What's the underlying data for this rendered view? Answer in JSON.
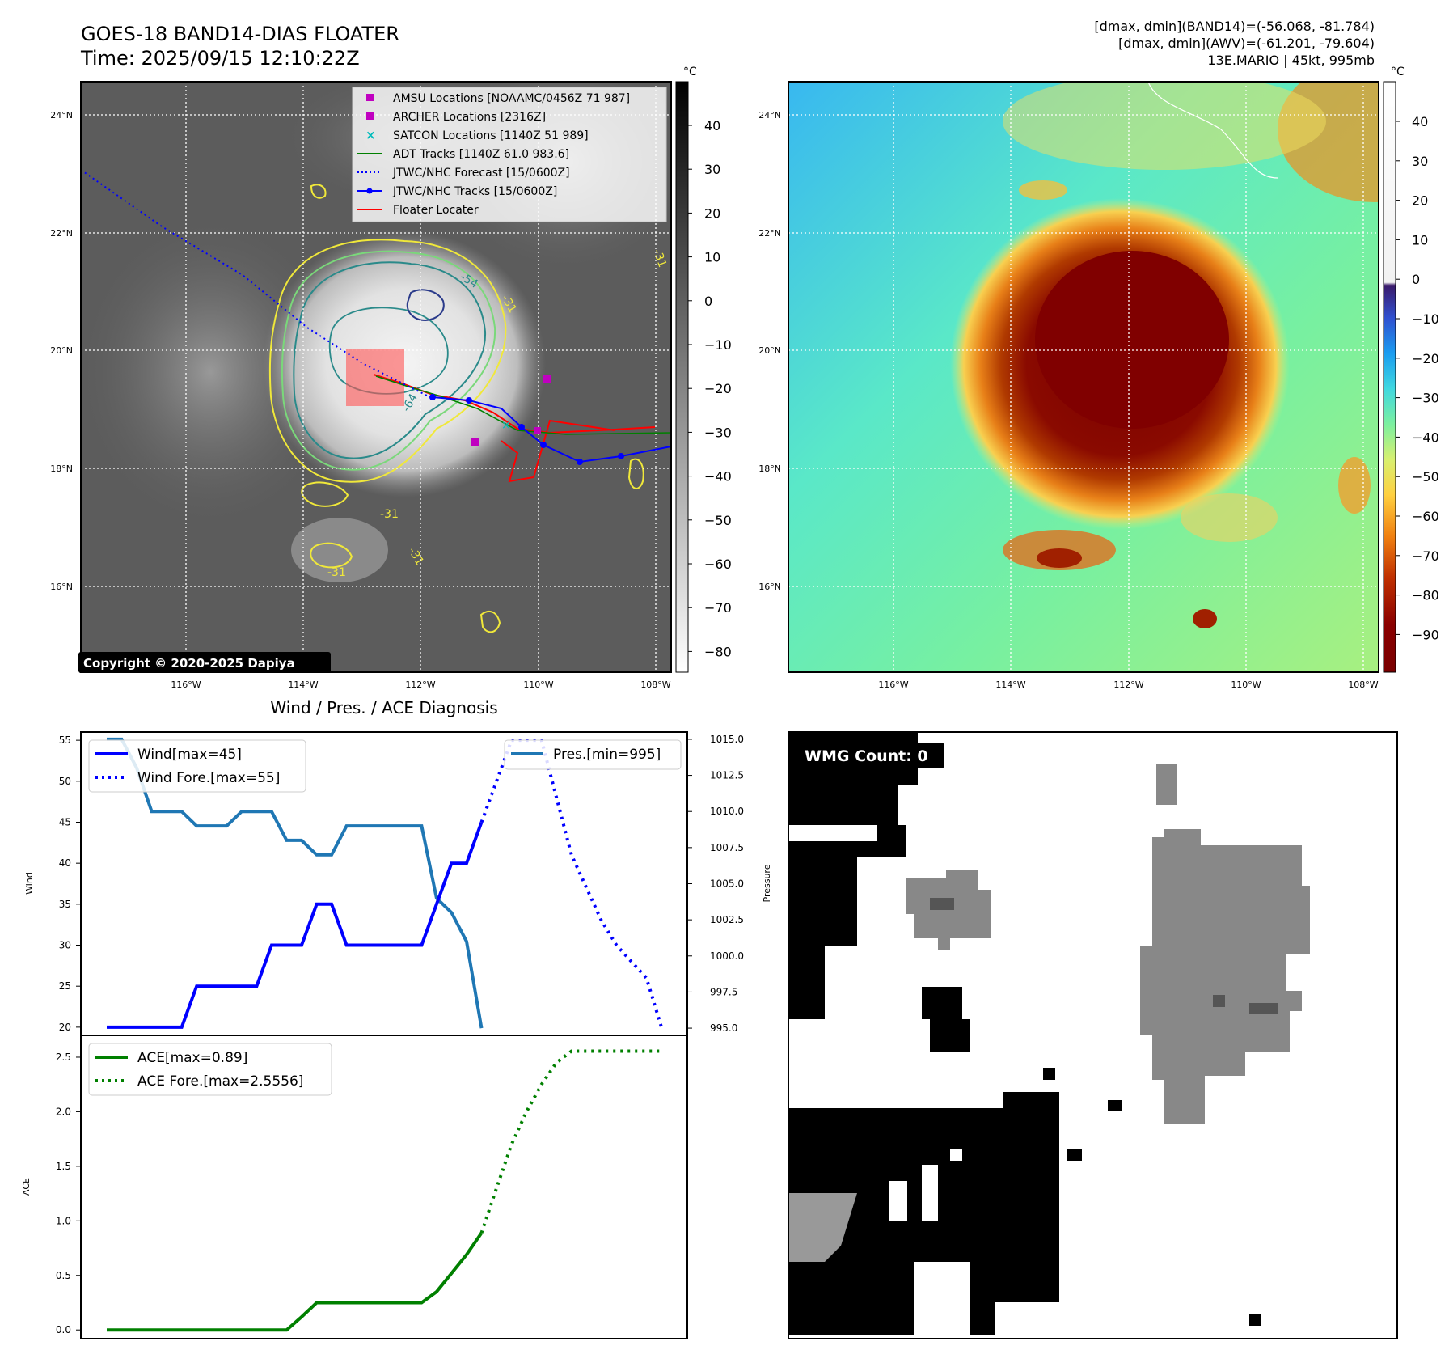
{
  "header": {
    "title_line1": "GOES-18 BAND14-DIAS FLOATER",
    "title_line2": "Time: 2025/09/15 12:10:22Z",
    "stats_line1": "[dmax, dmin](BAND14)=(-56.068, -81.784)",
    "stats_line2": "[dmax, dmin](AWV)=(-61.201, -79.604)",
    "stats_line3": "13E.MARIO | 45kt, 995mb"
  },
  "map_left": {
    "lat_labels": [
      "24°N",
      "22°N",
      "20°N",
      "18°N",
      "16°N"
    ],
    "lon_labels": [
      "116°W",
      "114°W",
      "112°W",
      "110°W",
      "108°W"
    ],
    "colorbar_unit": "°C",
    "colorbar_ticks": [
      "40",
      "30",
      "20",
      "10",
      "0",
      "−10",
      "−20",
      "−30",
      "−40",
      "−50",
      "−60",
      "−70",
      "−80"
    ],
    "contour_labels": [
      "-54",
      "-31",
      "-64",
      "-31",
      "-31",
      "-31",
      "-31"
    ],
    "copyright": "Copyright © 2020-2025 Dapiya",
    "legend": [
      {
        "label": "AMSU Locations [NOAAMC/0456Z 71 987]",
        "marker": "square",
        "color": "#c000c0"
      },
      {
        "label": "ARCHER Locations [2316Z]",
        "marker": "square",
        "color": "#c000c0"
      },
      {
        "label": "SATCON Locations [1140Z 51 989]",
        "marker": "x",
        "color": "#00bcbc"
      },
      {
        "label": "ADT Tracks [1140Z 61.0 983.6]",
        "marker": "line",
        "color": "#008000"
      },
      {
        "label": "JTWC/NHC Forecast [15/0600Z]",
        "marker": "dotted",
        "color": "#0000ff"
      },
      {
        "label": "JTWC/NHC Tracks [15/0600Z]",
        "marker": "line-dot",
        "color": "#0000ff"
      },
      {
        "label": "Floater Locater",
        "marker": "line",
        "color": "#ff0000"
      }
    ]
  },
  "map_right": {
    "lat_labels": [
      "24°N",
      "22°N",
      "20°N",
      "18°N",
      "16°N"
    ],
    "lon_labels": [
      "116°W",
      "114°W",
      "112°W",
      "110°W",
      "108°W"
    ],
    "colorbar_unit": "°C",
    "colorbar_ticks": [
      "40",
      "30",
      "20",
      "10",
      "0",
      "−10",
      "−20",
      "−30",
      "−40",
      "−50",
      "−60",
      "−70",
      "−80",
      "−90"
    ]
  },
  "chart_data": [
    {
      "type": "line",
      "title": "Wind / Pres. / ACE Diagnosis",
      "ylabel": "Wind",
      "y2label": "Pressure",
      "ylim": [
        19,
        56
      ],
      "y2lim": [
        994.5,
        1015.5
      ],
      "yticks": [
        "20",
        "25",
        "30",
        "35",
        "40",
        "45",
        "50",
        "55"
      ],
      "y2ticks": [
        "995.0",
        "997.5",
        "1000.0",
        "1002.5",
        "1005.0",
        "1007.5",
        "1010.0",
        "1012.5",
        "1015.0"
      ],
      "legend_left": [
        "Wind[max=45]",
        "Wind Fore.[max=55]"
      ],
      "legend_right": [
        "Pres.[min=995]"
      ],
      "series": [
        {
          "name": "Wind[max=45]",
          "axis": "left",
          "style": "solid",
          "color": "#0000ff",
          "x": [
            0,
            1,
            2,
            3,
            4,
            5,
            6,
            7,
            8,
            9,
            10,
            11,
            12,
            13,
            14,
            15,
            16,
            17,
            18,
            19,
            20,
            21,
            22,
            23,
            24,
            25
          ],
          "values": [
            20,
            20,
            20,
            20,
            20,
            20,
            25,
            25,
            25,
            25,
            25,
            30,
            30,
            30,
            35,
            35,
            30,
            30,
            30,
            30,
            30,
            30,
            35,
            40,
            40,
            45
          ]
        },
        {
          "name": "Wind Fore.[max=55]",
          "axis": "left",
          "style": "dotted",
          "color": "#0000ff",
          "x": [
            25,
            26,
            27,
            28,
            29,
            30,
            31,
            32,
            33,
            34,
            35,
            36,
            37
          ],
          "values": [
            45,
            50,
            55,
            55,
            55,
            48,
            41,
            37,
            33,
            30,
            28,
            26,
            20
          ]
        },
        {
          "name": "Pres.[min=995]",
          "axis": "right",
          "style": "solid",
          "color": "#1f77b4",
          "x": [
            0,
            1,
            2,
            3,
            4,
            5,
            6,
            7,
            8,
            9,
            10,
            11,
            12,
            13,
            14,
            15,
            16,
            17,
            18,
            19,
            20,
            21,
            22,
            23,
            24,
            25
          ],
          "values": [
            1015,
            1015,
            1013,
            1010,
            1010,
            1010,
            1009,
            1009,
            1009,
            1010,
            1010,
            1010,
            1008,
            1008,
            1007,
            1007,
            1009,
            1009,
            1009,
            1009,
            1009,
            1009,
            1004,
            1003,
            1001,
            995
          ]
        }
      ]
    },
    {
      "type": "line",
      "ylabel": "ACE",
      "ylim": [
        -0.08,
        2.7
      ],
      "yticks": [
        "0.0",
        "0.5",
        "1.0",
        "1.5",
        "2.0",
        "2.5"
      ],
      "legend": [
        "ACE[max=0.89]",
        "ACE Fore.[max=2.5556]"
      ],
      "series": [
        {
          "name": "ACE[max=0.89]",
          "style": "solid",
          "color": "#008000",
          "x": [
            0,
            1,
            2,
            3,
            4,
            5,
            6,
            7,
            8,
            9,
            10,
            11,
            12,
            13,
            14,
            15,
            16,
            17,
            18,
            19,
            20,
            21,
            22,
            23,
            24,
            25
          ],
          "values": [
            0,
            0,
            0,
            0,
            0,
            0,
            0,
            0,
            0,
            0,
            0,
            0,
            0,
            0.12,
            0.25,
            0.25,
            0.25,
            0.25,
            0.25,
            0.25,
            0.25,
            0.25,
            0.35,
            0.52,
            0.69,
            0.89
          ]
        },
        {
          "name": "ACE Fore.[max=2.5556]",
          "style": "dotted",
          "color": "#008000",
          "x": [
            25,
            26,
            27,
            28,
            29,
            30,
            31,
            32,
            33,
            34,
            35,
            36,
            37
          ],
          "values": [
            0.89,
            1.3,
            1.7,
            2.0,
            2.25,
            2.45,
            2.5556,
            2.5556,
            2.5556,
            2.5556,
            2.5556,
            2.5556,
            2.5556
          ]
        }
      ]
    }
  ],
  "wmg_panel": {
    "label": "WMG Count: 0"
  }
}
